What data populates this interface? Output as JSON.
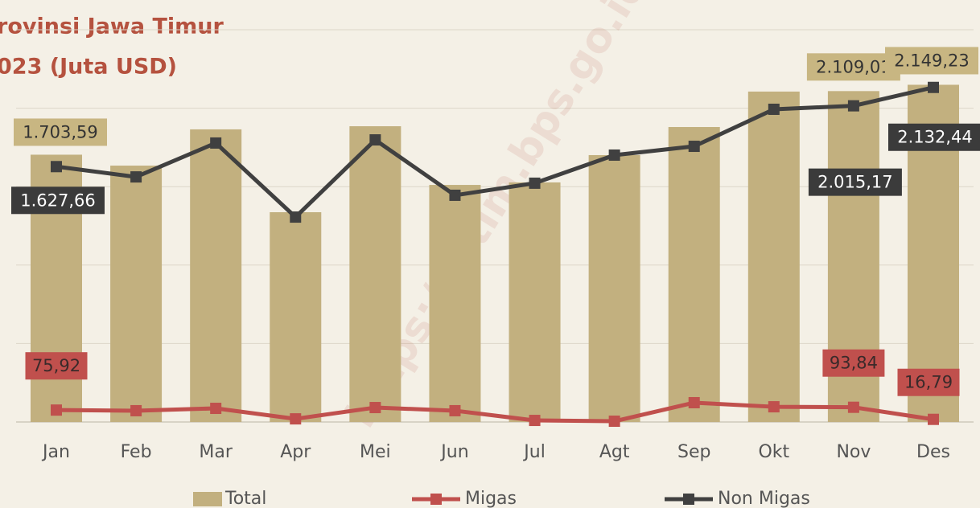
{
  "chart_data": {
    "type": "bar_line",
    "title_lines": [
      "rovinsi Jawa Timur",
      "023 (Juta USD)"
    ],
    "watermark": "https://jatim.bps.go.id",
    "categories": [
      "Jan",
      "Feb",
      "Mar",
      "Apr",
      "Mei",
      "Jun",
      "Jul",
      "Agt",
      "Sep",
      "Okt",
      "Nov",
      "Des"
    ],
    "ylim": [
      0,
      2500
    ],
    "yticks": [
      0,
      500,
      1000,
      1500,
      2000,
      2500
    ],
    "grid": true,
    "legend": "bottom",
    "series": [
      {
        "name": "Total",
        "kind": "bar",
        "color": "#c2b07f",
        "values": [
          1703.59,
          1634,
          1865,
          1337,
          1885,
          1511,
          1527,
          1701,
          1880,
          2106,
          2109.01,
          2149.23
        ],
        "value_labels": [
          "1.703,59",
          null,
          null,
          null,
          null,
          null,
          null,
          null,
          null,
          null,
          "2.109,01",
          "2.149,23"
        ]
      },
      {
        "name": "Migas",
        "kind": "line",
        "color": "#c0504d",
        "values": [
          75.92,
          72,
          87,
          20,
          92,
          72,
          10,
          5,
          123,
          97,
          93.84,
          16.79
        ],
        "value_labels": [
          "75,92",
          null,
          null,
          null,
          null,
          null,
          null,
          null,
          null,
          null,
          "93,84",
          "16,79"
        ]
      },
      {
        "name": "Non Migas",
        "kind": "line",
        "color": "#404040",
        "values": [
          1627.66,
          1562,
          1778,
          1306,
          1798,
          1445,
          1522,
          1701,
          1757,
          1993,
          2015.17,
          2132.44
        ],
        "value_labels": [
          "1.627,66",
          null,
          null,
          null,
          null,
          null,
          null,
          null,
          null,
          null,
          "2.015,17",
          "2.132,44"
        ]
      }
    ]
  }
}
